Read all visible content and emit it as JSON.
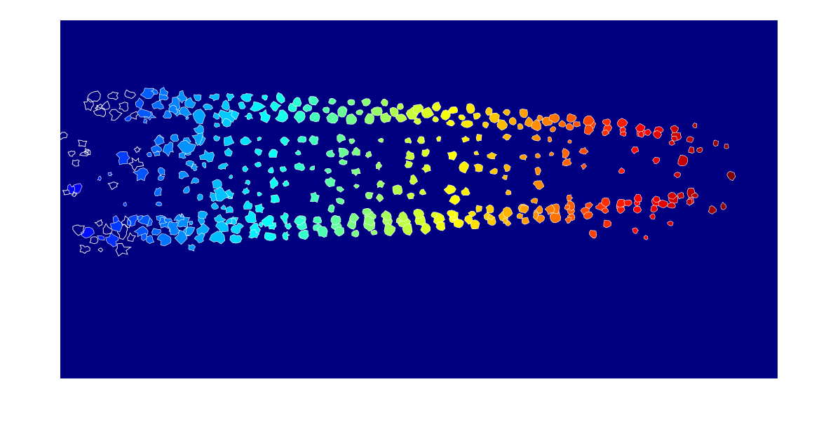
{
  "figure": {
    "kind": "segmented-cell-image",
    "colormap": "jet",
    "colors": {
      "background": "#000080",
      "outline": "#ffffff",
      "page": "#ffffff"
    }
  }
}
